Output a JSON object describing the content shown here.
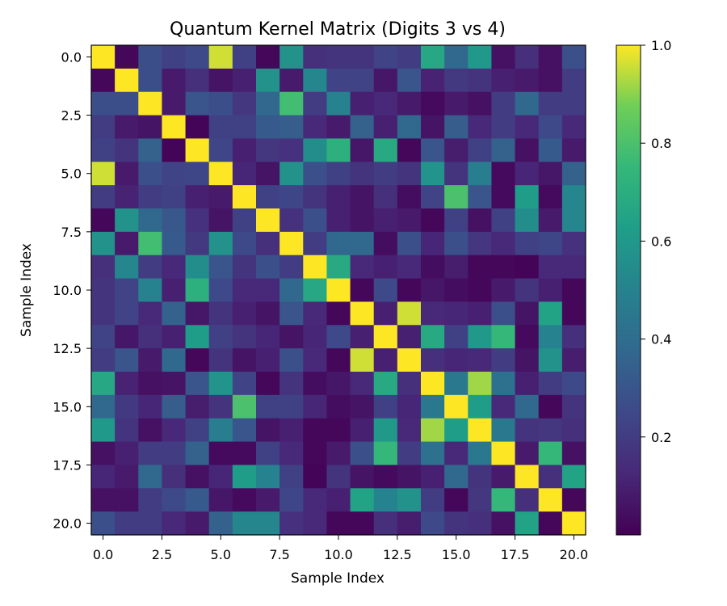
{
  "chart_data": {
    "type": "heatmap",
    "title": "Quantum Kernel Matrix (Digits 3 vs 4)",
    "xlabel": "Sample Index",
    "ylabel": "Sample Index",
    "colormap": "viridis",
    "xlim": [
      -0.5,
      20.5
    ],
    "ylim": [
      20.5,
      -0.5
    ],
    "x_ticks": [
      0.0,
      2.5,
      5.0,
      7.5,
      10.0,
      12.5,
      15.0,
      17.5,
      20.0
    ],
    "x_tick_labels": [
      "0.0",
      "2.5",
      "5.0",
      "7.5",
      "10.0",
      "12.5",
      "15.0",
      "17.5",
      "20.0"
    ],
    "y_ticks": [
      0.0,
      2.5,
      5.0,
      7.5,
      10.0,
      12.5,
      15.0,
      17.5,
      20.0
    ],
    "y_tick_labels": [
      "0.0",
      "2.5",
      "5.0",
      "7.5",
      "10.0",
      "12.5",
      "15.0",
      "17.5",
      "20.0"
    ],
    "colorbar": {
      "min": 0.0,
      "max": 1.0,
      "ticks": [
        0.2,
        0.4,
        0.6,
        0.8,
        1.0
      ],
      "tick_labels": [
        "0.2",
        "0.4",
        "0.6",
        "0.8",
        "1.0"
      ]
    },
    "matrix": [
      [
        1.0,
        0.02,
        0.27,
        0.22,
        0.25,
        0.96,
        0.22,
        0.02,
        0.57,
        0.15,
        0.17,
        0.17,
        0.23,
        0.2,
        0.67,
        0.38,
        0.6,
        0.05,
        0.15,
        0.05,
        0.28
      ],
      [
        0.02,
        1.0,
        0.27,
        0.08,
        0.15,
        0.06,
        0.1,
        0.57,
        0.08,
        0.52,
        0.23,
        0.23,
        0.07,
        0.3,
        0.11,
        0.19,
        0.17,
        0.1,
        0.08,
        0.05,
        0.2
      ],
      [
        0.27,
        0.27,
        1.0,
        0.08,
        0.3,
        0.27,
        0.18,
        0.37,
        0.78,
        0.2,
        0.5,
        0.1,
        0.13,
        0.08,
        0.03,
        0.08,
        0.05,
        0.2,
        0.38,
        0.2,
        0.2
      ],
      [
        0.2,
        0.08,
        0.06,
        1.0,
        0.01,
        0.22,
        0.22,
        0.32,
        0.33,
        0.13,
        0.08,
        0.35,
        0.1,
        0.38,
        0.06,
        0.33,
        0.13,
        0.2,
        0.13,
        0.25,
        0.13
      ],
      [
        0.22,
        0.17,
        0.35,
        0.01,
        1.0,
        0.24,
        0.1,
        0.18,
        0.16,
        0.55,
        0.71,
        0.07,
        0.68,
        0.02,
        0.3,
        0.09,
        0.22,
        0.35,
        0.05,
        0.32,
        0.08
      ],
      [
        0.96,
        0.08,
        0.28,
        0.23,
        0.24,
        1.0,
        0.12,
        0.06,
        0.57,
        0.28,
        0.22,
        0.17,
        0.2,
        0.17,
        0.58,
        0.17,
        0.48,
        0.03,
        0.12,
        0.07,
        0.35
      ],
      [
        0.2,
        0.11,
        0.2,
        0.22,
        0.1,
        0.08,
        1.0,
        0.22,
        0.24,
        0.17,
        0.1,
        0.06,
        0.15,
        0.04,
        0.23,
        0.8,
        0.3,
        0.03,
        0.62,
        0.03,
        0.52
      ],
      [
        0.02,
        0.57,
        0.38,
        0.31,
        0.16,
        0.06,
        0.22,
        1.0,
        0.16,
        0.28,
        0.1,
        0.06,
        0.1,
        0.08,
        0.02,
        0.22,
        0.05,
        0.22,
        0.55,
        0.08,
        0.52
      ],
      [
        0.57,
        0.08,
        0.78,
        0.32,
        0.19,
        0.57,
        0.25,
        0.15,
        1.0,
        0.2,
        0.38,
        0.38,
        0.04,
        0.28,
        0.12,
        0.28,
        0.18,
        0.13,
        0.22,
        0.24,
        0.16
      ],
      [
        0.15,
        0.52,
        0.2,
        0.13,
        0.55,
        0.3,
        0.17,
        0.28,
        0.2,
        1.0,
        0.68,
        0.13,
        0.1,
        0.13,
        0.04,
        0.09,
        0.02,
        0.02,
        0.01,
        0.13,
        0.13
      ],
      [
        0.17,
        0.23,
        0.5,
        0.1,
        0.71,
        0.25,
        0.13,
        0.13,
        0.38,
        0.67,
        1.0,
        0.02,
        0.25,
        0.02,
        0.07,
        0.04,
        0.02,
        0.08,
        0.17,
        0.1,
        0.02
      ],
      [
        0.17,
        0.23,
        0.13,
        0.35,
        0.07,
        0.17,
        0.1,
        0.06,
        0.3,
        0.13,
        0.02,
        1.0,
        0.1,
        0.96,
        0.13,
        0.12,
        0.1,
        0.28,
        0.06,
        0.65,
        0.02
      ],
      [
        0.23,
        0.07,
        0.15,
        0.1,
        0.62,
        0.22,
        0.17,
        0.12,
        0.06,
        0.12,
        0.25,
        0.1,
        1.0,
        0.1,
        0.68,
        0.22,
        0.6,
        0.75,
        0.03,
        0.5,
        0.15
      ],
      [
        0.2,
        0.3,
        0.08,
        0.38,
        0.02,
        0.17,
        0.06,
        0.1,
        0.28,
        0.13,
        0.02,
        0.96,
        0.1,
        1.0,
        0.15,
        0.12,
        0.13,
        0.2,
        0.06,
        0.57,
        0.09
      ],
      [
        0.67,
        0.11,
        0.05,
        0.06,
        0.3,
        0.58,
        0.23,
        0.02,
        0.17,
        0.04,
        0.07,
        0.13,
        0.68,
        0.15,
        1.0,
        0.45,
        0.92,
        0.42,
        0.1,
        0.2,
        0.25
      ],
      [
        0.38,
        0.19,
        0.12,
        0.33,
        0.09,
        0.17,
        0.8,
        0.22,
        0.22,
        0.12,
        0.04,
        0.06,
        0.22,
        0.12,
        0.45,
        1.0,
        0.62,
        0.13,
        0.38,
        0.02,
        0.17
      ],
      [
        0.6,
        0.17,
        0.05,
        0.13,
        0.22,
        0.48,
        0.3,
        0.06,
        0.1,
        0.02,
        0.02,
        0.1,
        0.6,
        0.13,
        0.92,
        0.62,
        1.0,
        0.45,
        0.17,
        0.18,
        0.15
      ],
      [
        0.05,
        0.1,
        0.2,
        0.2,
        0.35,
        0.03,
        0.03,
        0.22,
        0.13,
        0.02,
        0.08,
        0.28,
        0.75,
        0.2,
        0.42,
        0.13,
        0.45,
        1.0,
        0.08,
        0.75,
        0.05
      ],
      [
        0.12,
        0.08,
        0.38,
        0.15,
        0.05,
        0.12,
        0.62,
        0.5,
        0.22,
        0.01,
        0.17,
        0.06,
        0.03,
        0.06,
        0.1,
        0.38,
        0.17,
        0.08,
        1.0,
        0.15,
        0.65
      ],
      [
        0.05,
        0.05,
        0.2,
        0.25,
        0.32,
        0.07,
        0.03,
        0.08,
        0.24,
        0.13,
        0.1,
        0.65,
        0.5,
        0.57,
        0.2,
        0.02,
        0.18,
        0.75,
        0.15,
        1.0,
        0.02
      ],
      [
        0.28,
        0.2,
        0.2,
        0.13,
        0.08,
        0.35,
        0.52,
        0.52,
        0.16,
        0.13,
        0.02,
        0.02,
        0.15,
        0.09,
        0.25,
        0.17,
        0.15,
        0.05,
        0.65,
        0.02,
        1.0
      ]
    ]
  }
}
